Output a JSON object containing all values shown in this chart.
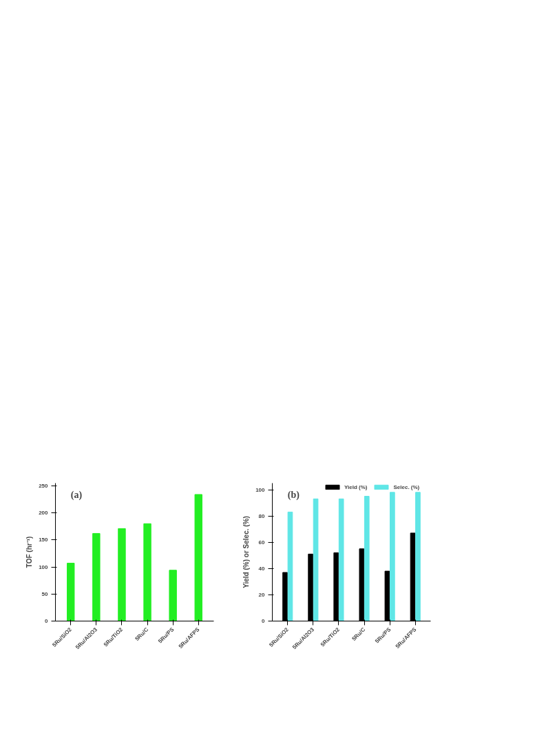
{
  "chart_data": [
    {
      "type": "bar",
      "categories": [
        "5Ru/SiO2",
        "5Ru/Al2O3",
        "5Ru/TiO2",
        "5Ru/C",
        "5Ru/PS",
        "5Ru/AFPS"
      ],
      "ylabel": "TOF (hr⁻¹)",
      "annotations": [
        "(a)"
      ],
      "series": [
        {
          "color": "#22ee22",
          "values": [
            107,
            162,
            171,
            180,
            94,
            234
          ]
        }
      ],
      "ylim": [
        0,
        255
      ],
      "yticks": [
        0,
        50,
        100,
        150,
        200,
        250
      ],
      "grid": false
    },
    {
      "type": "bar",
      "categories": [
        "5Ru/SiO2",
        "5Ru/Al2O3",
        "5Ru/TiO2",
        "5Ru/C",
        "5Ru/PS",
        "5Ru/AFPS"
      ],
      "ylabel": "Yield (%) or Selec. (%)",
      "annotations": [
        "(b)"
      ],
      "series": [
        {
          "name": "Yield (%)",
          "color": "#000000",
          "values": [
            37,
            51,
            52,
            55,
            38,
            67
          ]
        },
        {
          "name": "Selec. (%)",
          "color": "#5fe6e6",
          "values": [
            83,
            93,
            93,
            95,
            98,
            98
          ]
        }
      ],
      "ylim": [
        0,
        105
      ],
      "yticks": [
        0,
        20,
        40,
        60,
        80,
        100
      ],
      "grid": false,
      "legend": "top"
    }
  ]
}
